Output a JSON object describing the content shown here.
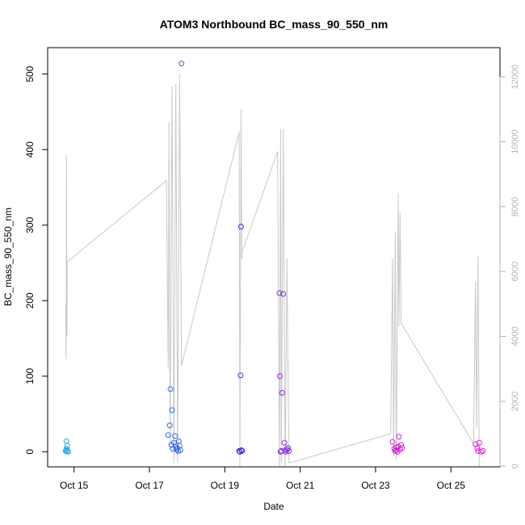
{
  "chart_data": {
    "type": "scatter",
    "title": "ATOM3 Northbound BC_mass_90_550_nm",
    "xlabel": "Date",
    "ylabel": "BC_mass_90_550_nm",
    "x_unit": "days in October",
    "xlim": [
      14.3,
      26.3
    ],
    "ylim": [
      -20,
      535
    ],
    "y2lim": [
      -20,
      12900
    ],
    "x_ticks": [
      {
        "value": 15,
        "label": "Oct 15"
      },
      {
        "value": 17,
        "label": "Oct 17"
      },
      {
        "value": 19,
        "label": "Oct 19"
      },
      {
        "value": 21,
        "label": "Oct 21"
      },
      {
        "value": 23,
        "label": "Oct 23"
      },
      {
        "value": 25,
        "label": "Oct 25"
      }
    ],
    "y_ticks": [
      0,
      100,
      200,
      300,
      400,
      500
    ],
    "y2_ticks": [
      0,
      2000,
      4000,
      6000,
      8000,
      10000,
      12000
    ],
    "grid": false,
    "line_color": "#c8c8c8",
    "right_axis_color": "#b3b3b3",
    "series": [
      {
        "color": "#1fa8e6",
        "points": [
          [
            14.78,
            1
          ],
          [
            14.8,
            4
          ],
          [
            14.82,
            8
          ],
          [
            14.8,
            14
          ],
          [
            14.84,
            0
          ],
          [
            14.83,
            1
          ],
          [
            14.79,
            2
          ]
        ]
      },
      {
        "color": "#2e6be6",
        "points": [
          [
            17.5,
            22
          ],
          [
            17.54,
            35
          ],
          [
            17.56,
            83
          ],
          [
            17.6,
            55
          ],
          [
            17.58,
            9
          ],
          [
            17.62,
            4
          ],
          [
            17.65,
            12
          ],
          [
            17.68,
            21
          ],
          [
            17.7,
            7
          ],
          [
            17.72,
            3
          ],
          [
            17.74,
            5
          ],
          [
            17.76,
            1
          ],
          [
            17.78,
            14
          ],
          [
            17.8,
            8
          ],
          [
            17.82,
            2
          ],
          [
            17.85,
            514
          ]
        ]
      },
      {
        "color": "#3a2fe0",
        "points": [
          [
            19.38,
            1
          ],
          [
            19.4,
            0
          ],
          [
            19.42,
            101
          ],
          [
            19.43,
            298
          ],
          [
            19.44,
            2
          ],
          [
            19.46,
            1
          ]
        ]
      },
      {
        "color": "#8a2be2",
        "points": [
          [
            20.45,
            210
          ],
          [
            20.46,
            100
          ],
          [
            20.5,
            1
          ],
          [
            20.52,
            78
          ],
          [
            20.55,
            209
          ],
          [
            20.58,
            12
          ],
          [
            20.6,
            2
          ],
          [
            20.62,
            0
          ],
          [
            20.65,
            3
          ],
          [
            20.68,
            5
          ],
          [
            20.7,
            1
          ],
          [
            20.48,
            0
          ]
        ]
      },
      {
        "color": "#d21fe0",
        "points": [
          [
            23.45,
            13
          ],
          [
            23.5,
            4
          ],
          [
            23.52,
            1
          ],
          [
            23.55,
            2
          ],
          [
            23.58,
            0
          ],
          [
            23.6,
            7
          ],
          [
            23.62,
            20
          ],
          [
            23.65,
            3
          ],
          [
            23.68,
            9
          ],
          [
            23.7,
            5
          ],
          [
            23.55,
            6
          ]
        ]
      },
      {
        "color": "#e020d4",
        "points": [
          [
            25.65,
            10
          ],
          [
            25.7,
            5
          ],
          [
            25.72,
            1
          ],
          [
            25.75,
            12
          ],
          [
            25.8,
            0
          ],
          [
            25.85,
            1
          ]
        ]
      }
    ],
    "line_y2": [
      [
        14.78,
        5000
      ],
      [
        14.79,
        3300
      ],
      [
        14.8,
        9600
      ],
      [
        14.81,
        4000
      ],
      [
        14.82,
        6300
      ],
      [
        17.45,
        8800
      ],
      [
        17.5,
        3000
      ],
      [
        17.52,
        10600
      ],
      [
        17.55,
        500
      ],
      [
        17.6,
        11700
      ],
      [
        17.65,
        100
      ],
      [
        17.7,
        11800
      ],
      [
        17.75,
        100
      ],
      [
        17.8,
        12100
      ],
      [
        17.85,
        3100
      ],
      [
        19.38,
        10300
      ],
      [
        19.4,
        0
      ],
      [
        19.43,
        11000
      ],
      [
        19.45,
        6400
      ],
      [
        19.46,
        6600
      ],
      [
        20.4,
        9700
      ],
      [
        20.45,
        0
      ],
      [
        20.48,
        10400
      ],
      [
        20.5,
        100
      ],
      [
        20.55,
        10400
      ],
      [
        20.6,
        0
      ],
      [
        20.65,
        6400
      ],
      [
        20.7,
        100
      ],
      [
        23.4,
        1000
      ],
      [
        23.45,
        6400
      ],
      [
        23.48,
        300
      ],
      [
        23.52,
        7200
      ],
      [
        23.55,
        200
      ],
      [
        23.6,
        8400
      ],
      [
        23.62,
        4300
      ],
      [
        23.65,
        7800
      ],
      [
        23.68,
        4400
      ],
      [
        25.6,
        700
      ],
      [
        25.65,
        5700
      ],
      [
        25.68,
        1200
      ],
      [
        25.72,
        6500
      ],
      [
        25.75,
        0
      ]
    ]
  }
}
